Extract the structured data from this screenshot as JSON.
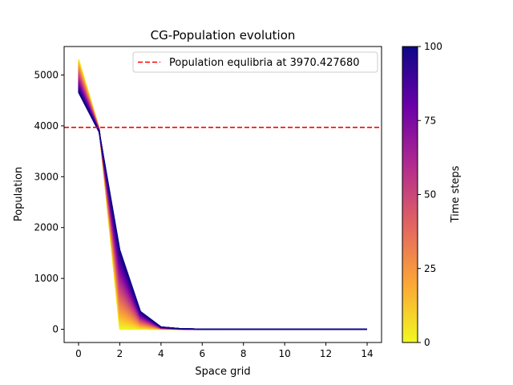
{
  "chart_data": {
    "type": "line",
    "title": "CG-Population evolution",
    "xlabel": "Space grid",
    "ylabel": "Population",
    "xlim": [
      -0.7,
      14.7
    ],
    "ylim": [
      -260,
      5560
    ],
    "xticks": [
      0,
      2,
      4,
      6,
      8,
      10,
      12,
      14
    ],
    "yticks": [
      0,
      1000,
      2000,
      3000,
      4000,
      5000
    ],
    "x": [
      0,
      1,
      2,
      3,
      4,
      5,
      6,
      7,
      8,
      9,
      10,
      11,
      12,
      13,
      14
    ],
    "series_family": {
      "count": 101,
      "start_values": [
        5310,
        3950,
        0,
        0,
        0,
        0,
        0,
        0,
        0,
        0,
        0,
        0,
        0,
        0,
        0
      ],
      "end_values": [
        4660,
        3880,
        1560,
        350,
        45,
        8,
        2,
        0,
        0,
        0,
        0,
        0,
        0,
        0,
        0
      ],
      "colormap": "plasma_reversed"
    },
    "reference_line": {
      "value": 3970.42768,
      "color": "#ff0000",
      "style": "dashed",
      "label": "Population equlibria at 3970.427680"
    },
    "legend_position": "top-right",
    "colorbar": {
      "label": "Time steps",
      "range": [
        0,
        100
      ],
      "ticks": [
        0,
        25,
        50,
        75,
        100
      ],
      "stops": [
        "#f0f921",
        "#fca636",
        "#e16462",
        "#b12a90",
        "#6a00a8",
        "#0d0887"
      ]
    },
    "grid": false
  }
}
